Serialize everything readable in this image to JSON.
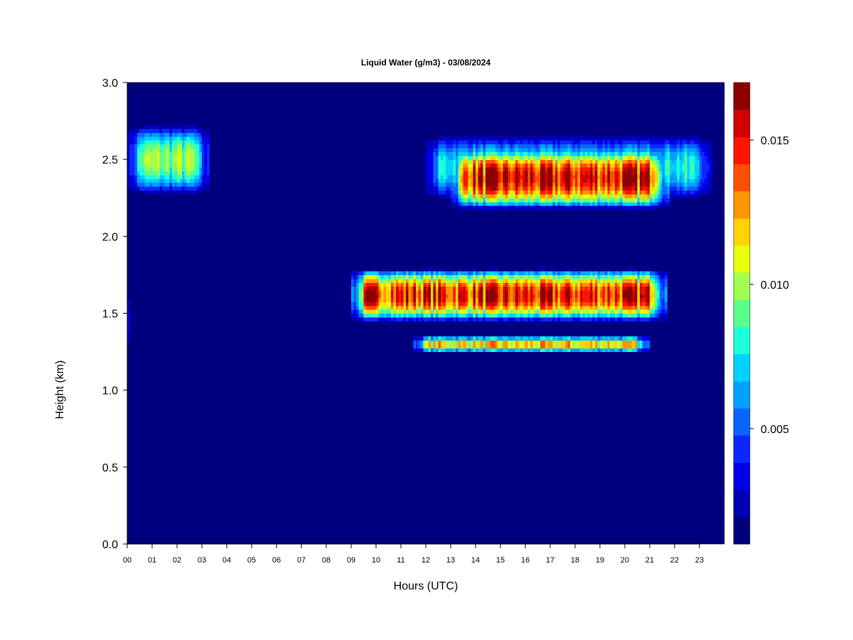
{
  "chart_data": {
    "type": "heatmap",
    "title": "Liquid Water (g/m3) - 03/08/2024",
    "xlabel": "Hours (UTC)",
    "ylabel": "Height (km)",
    "x_ticks": [
      "00",
      "01",
      "02",
      "03",
      "04",
      "05",
      "06",
      "07",
      "08",
      "09",
      "10",
      "11",
      "12",
      "13",
      "14",
      "15",
      "16",
      "17",
      "18",
      "19",
      "20",
      "21",
      "22",
      "23"
    ],
    "xlim": [
      0,
      24
    ],
    "y_ticks": [
      "0.0",
      "0.5",
      "1.0",
      "1.5",
      "2.0",
      "2.5",
      "3.0"
    ],
    "ylim": [
      0.0,
      3.0
    ],
    "colorbar": {
      "range": [
        0.001,
        0.017
      ],
      "ticks": [
        {
          "value": 0.005,
          "label": "0.005"
        },
        {
          "value": 0.01,
          "label": "0.010"
        },
        {
          "value": 0.015,
          "label": "0.015"
        }
      ],
      "colors": [
        "#00007f",
        "#0000b4",
        "#0000e6",
        "#0a28ff",
        "#0a64ff",
        "#00a0ff",
        "#00d2ff",
        "#1effd8",
        "#5aff8c",
        "#a0ff50",
        "#e6ff0a",
        "#ffd200",
        "#ff9600",
        "#ff5000",
        "#ff1400",
        "#d20000",
        "#8c0000"
      ]
    },
    "cloud_layers": [
      {
        "x_start": 0.0,
        "x_end": 3.3,
        "y_center": 2.5,
        "half_thickness": 0.22,
        "peak": 0.0105,
        "note_hours_peak": [
          0.0,
          0.7,
          2.2
        ]
      },
      {
        "x_start": 12.0,
        "x_end": 23.5,
        "y_center": 2.45,
        "half_thickness": 0.2,
        "peak": 0.0085
      },
      {
        "x_start": 13.0,
        "x_end": 21.8,
        "y_center": 2.38,
        "half_thickness": 0.2,
        "peak": 0.0165
      },
      {
        "x_start": 9.0,
        "x_end": 21.7,
        "y_center": 1.62,
        "half_thickness": 0.17,
        "peak": 0.016
      },
      {
        "x_start": 11.5,
        "x_end": 21.0,
        "y_center": 1.3,
        "half_thickness": 0.05,
        "peak": 0.013
      },
      {
        "x_start": 0.0,
        "x_end": 0.15,
        "y_center": 1.45,
        "half_thickness": 0.18,
        "peak": 0.01
      }
    ]
  }
}
